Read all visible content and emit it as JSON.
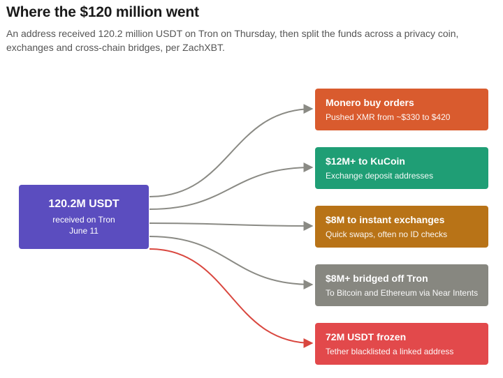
{
  "header": {
    "title": "Where the $120 million went",
    "subtitle": "An address received 120.2 million USDT on Tron on Thursday, then split the funds across a privacy coin, exchanges and cross-chain bridges, per ZachXBT."
  },
  "source": {
    "amount": "120.2M USDT",
    "line1": "received on Tron",
    "line2": "June 11",
    "color": "#5b4dbf"
  },
  "destinations": [
    {
      "title": "Monero buy orders",
      "desc": "Pushed XMR from ~$330 to $420",
      "color": "#d95b2e"
    },
    {
      "title": "$12M+ to KuCoin",
      "desc": "Exchange deposit addresses",
      "color": "#1f9e75"
    },
    {
      "title": "$8M to instant exchanges",
      "desc": "Quick swaps, often no ID checks",
      "color": "#b87317"
    },
    {
      "title": "$8M+ bridged off Tron",
      "desc": "To Bitcoin and Ethereum via Near Intents",
      "color": "#878780"
    },
    {
      "title": "72M USDT frozen",
      "desc": "Tether blacklisted a linked address",
      "color": "#e2494b"
    }
  ],
  "arrow_colors": {
    "default": "#8a8a84",
    "frozen": "#d9473f"
  }
}
